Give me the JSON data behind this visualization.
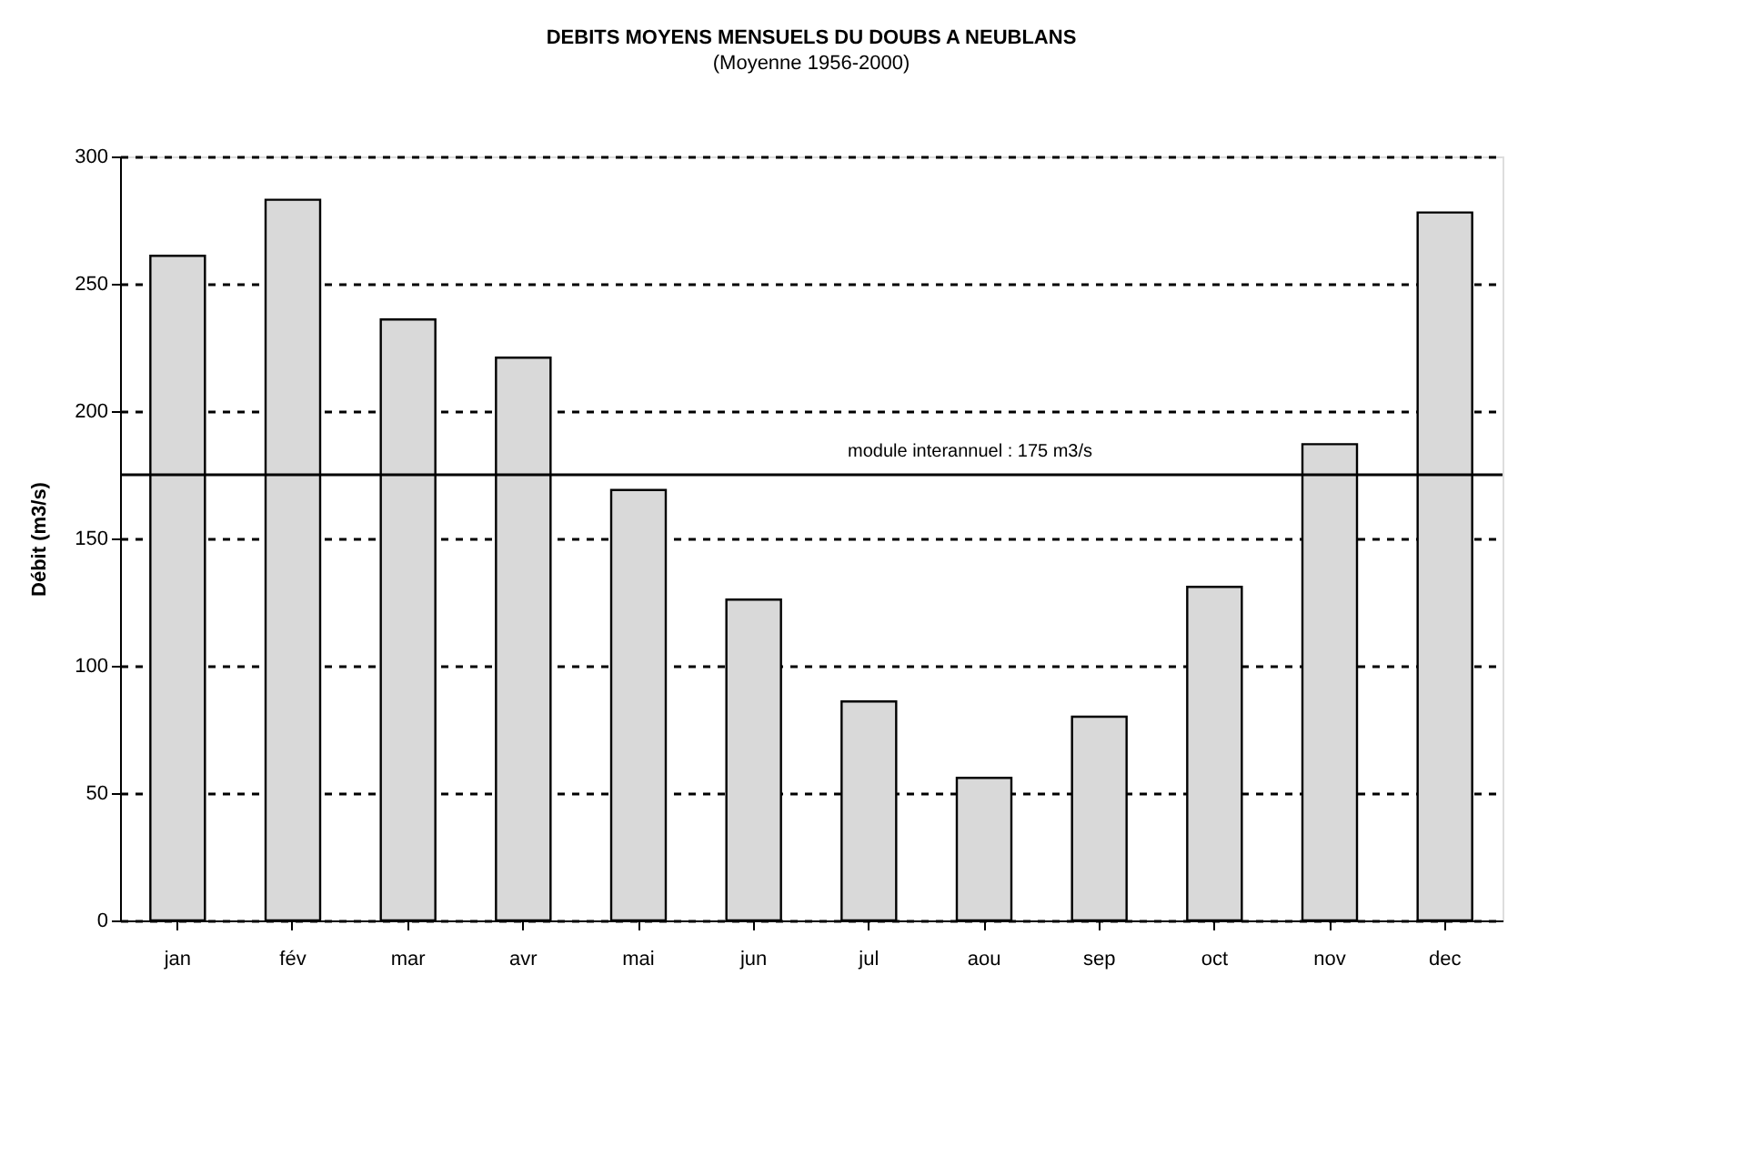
{
  "chart_data": {
    "type": "bar",
    "title": "DEBITS MOYENS MENSUELS DU DOUBS A NEUBLANS",
    "subtitle": "(Moyenne 1956-2000)",
    "ylabel": "Débit (m3/s)",
    "categories": [
      "jan",
      "fév",
      "mar",
      "avr",
      "mai",
      "jun",
      "jul",
      "aou",
      "sep",
      "oct",
      "nov",
      "dec"
    ],
    "values": [
      261,
      283,
      236,
      221,
      169,
      126,
      86,
      56,
      80,
      131,
      187,
      278
    ],
    "color": "#d9d9d9",
    "ylim": [
      0,
      300
    ],
    "yticks": [
      0,
      50,
      100,
      150,
      200,
      250,
      300
    ],
    "grid": "y",
    "ref_lines": [
      {
        "axis": "y",
        "value": 175,
        "label": "module interannuel : 175 m3/s",
        "color": "#000000",
        "line_style": "solid"
      }
    ]
  }
}
